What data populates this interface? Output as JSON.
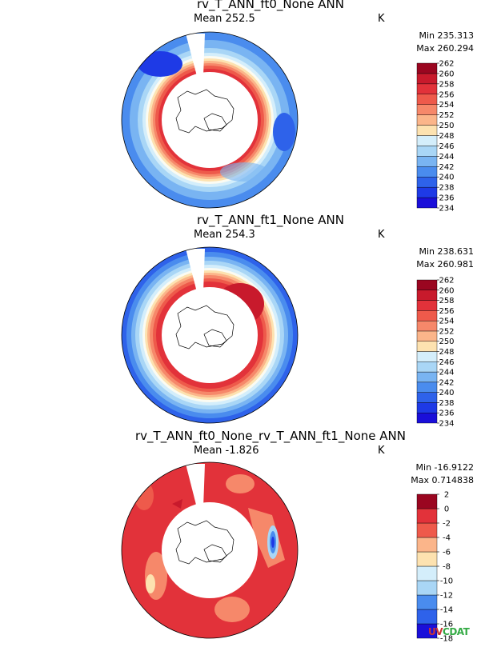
{
  "palette": [
    "#1a0fd9",
    "#1e3ae6",
    "#2e62ea",
    "#4a8cee",
    "#79b4f2",
    "#a9d6f6",
    "#d4eefb",
    "#fbfbf2",
    "#fde2b0",
    "#fbb58a",
    "#f6886a",
    "#ee5a4b",
    "#e2323a",
    "#c81a2c",
    "#9a0620"
  ],
  "panels": [
    {
      "title": "rv_T_ANN_ft0_None  ANN",
      "mean": "Mean 252.5",
      "units": "K",
      "min": "Min 235.313",
      "max": "Max 260.294",
      "levels": [
        "234",
        "236",
        "238",
        "240",
        "242",
        "244",
        "246",
        "248",
        "250",
        "252",
        "254",
        "256",
        "258",
        "260",
        "262"
      ]
    },
    {
      "title": "rv_T_ANN_ft1_None  ANN",
      "mean": "Mean 254.3",
      "units": "K",
      "min": "Min 238.631",
      "max": "Max 260.981",
      "levels": [
        "234",
        "236",
        "238",
        "240",
        "242",
        "244",
        "246",
        "248",
        "250",
        "252",
        "254",
        "256",
        "258",
        "260",
        "262"
      ]
    },
    {
      "title": "rv_T_ANN_ft0_None_rv_T_ANN_ft1_None  ANN",
      "mean": "Mean -1.826",
      "units": "K",
      "min": "Min -16.9122",
      "max": "Max 0.714838",
      "levels": [
        "-18",
        "-16",
        "-14",
        "-12",
        "-10",
        "-8",
        "-6",
        "-4",
        "-2",
        "0",
        "2"
      ]
    }
  ],
  "chart_data": [
    {
      "type": "heatmap",
      "title": "rv_T_ANN_ft0_None  ANN",
      "mean": 252.5,
      "min": 235.313,
      "max": 260.294,
      "units": "K",
      "colorbar_levels": [
        234,
        236,
        238,
        240,
        242,
        244,
        246,
        248,
        250,
        252,
        254,
        256,
        258,
        260,
        262
      ]
    },
    {
      "type": "heatmap",
      "title": "rv_T_ANN_ft1_None  ANN",
      "mean": 254.3,
      "min": 238.631,
      "max": 260.981,
      "units": "K",
      "colorbar_levels": [
        234,
        236,
        238,
        240,
        242,
        244,
        246,
        248,
        250,
        252,
        254,
        256,
        258,
        260,
        262
      ]
    },
    {
      "type": "heatmap",
      "title": "rv_T_ANN_ft0_None_rv_T_ANN_ft1_None  ANN",
      "mean": -1.826,
      "min": -16.9122,
      "max": 0.714838,
      "units": "K",
      "colorbar_levels": [
        -18,
        -16,
        -14,
        -12,
        -10,
        -8,
        -6,
        -4,
        -2,
        0,
        2
      ]
    }
  ],
  "logo": {
    "u": "UV",
    "c": "CDAT"
  }
}
